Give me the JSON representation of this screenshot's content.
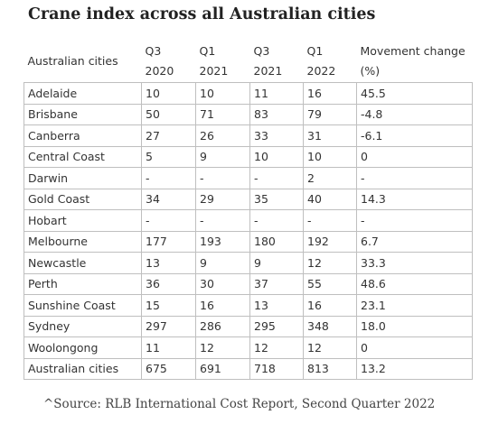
{
  "title": "Crane index across all Australian cities",
  "headers": [
    "Australian cities",
    "Q3 2020",
    "Q1 2021",
    "Q3 2021",
    "Q1 2022",
    "Movement change (%)"
  ],
  "rows": [
    [
      "Adelaide",
      "10",
      "10",
      "11",
      "16",
      "45.5"
    ],
    [
      "Brisbane",
      "50",
      "71",
      "83",
      "79",
      "-4.8"
    ],
    [
      "Canberra",
      "27",
      "26",
      "33",
      "31",
      "-6.1"
    ],
    [
      "Central Coast",
      "5",
      "9",
      "10",
      "10",
      "0"
    ],
    [
      "Darwin",
      "-",
      "-",
      "-",
      "2",
      "-"
    ],
    [
      "Gold Coast",
      "34",
      "29",
      "35",
      "40",
      "14.3"
    ],
    [
      "Hobart",
      "-",
      "-",
      "-",
      "-",
      "-"
    ],
    [
      "Melbourne",
      "177",
      "193",
      "180",
      "192",
      "6.7"
    ],
    [
      "Newcastle",
      "13",
      "9",
      "9",
      "12",
      "33.3"
    ],
    [
      "Perth",
      "36",
      "30",
      "37",
      "55",
      "48.6"
    ],
    [
      "Sunshine Coast",
      "15",
      "16",
      "13",
      "16",
      "23.1"
    ],
    [
      "Sydney",
      "297",
      "286",
      "295",
      "348",
      "18.0"
    ],
    [
      "Woolongong",
      "11",
      "12",
      "12",
      "12",
      "0"
    ],
    [
      "Australian cities",
      "675",
      "691",
      "718",
      "813",
      "13.2"
    ]
  ],
  "source": "^Source: RLB International Cost Report, Second Quarter 2022"
}
